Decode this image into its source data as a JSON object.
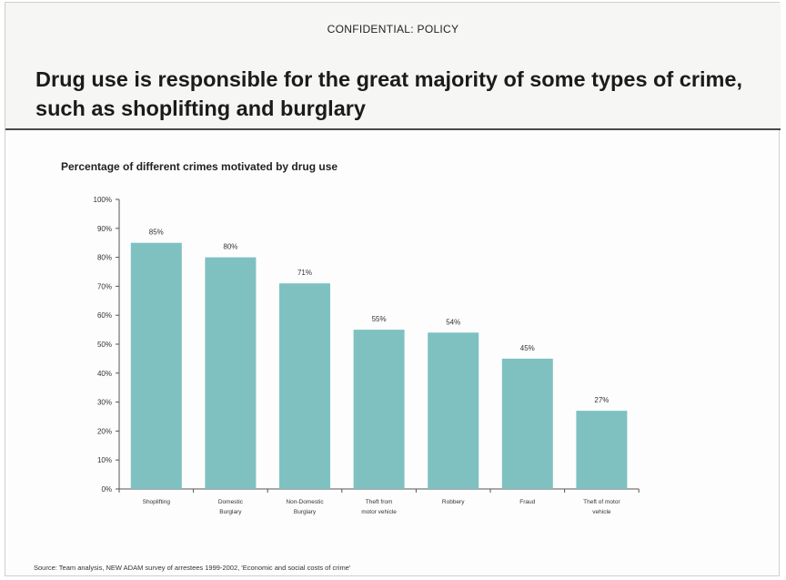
{
  "header": {
    "confidential": "CONFIDENTIAL: POLICY",
    "title": "Drug use is responsible for the great majority of some types of crime, such as shoplifting and burglary"
  },
  "footer": {
    "source": "Source: Team analysis, NEW ADAM survey of arrestees 1999-2002, 'Economic and social costs of crime'"
  },
  "colors": {
    "bar": "#7fc1c1",
    "axis": "#555555"
  },
  "chart_data": {
    "type": "bar",
    "title": "Percentage of different crimes motivated by drug use",
    "categories": [
      [
        "Shoplifting"
      ],
      [
        "Domestic",
        "Burglary"
      ],
      [
        "Non-Domestic",
        "Burglary"
      ],
      [
        "Theft from",
        "motor vehicle"
      ],
      [
        "Robbery"
      ],
      [
        "Fraud"
      ],
      [
        "Theft of motor",
        "vehicle"
      ]
    ],
    "values": [
      85,
      80,
      71,
      55,
      54,
      45,
      27
    ],
    "value_labels": [
      "85%",
      "80%",
      "71%",
      "55%",
      "54%",
      "45%",
      "27%"
    ],
    "ylim": [
      0,
      100
    ],
    "yticks": [
      "0%",
      "10%",
      "20%",
      "30%",
      "40%",
      "50%",
      "60%",
      "70%",
      "80%",
      "90%",
      "100%"
    ],
    "xlabel": "",
    "ylabel": "",
    "grid": false
  }
}
